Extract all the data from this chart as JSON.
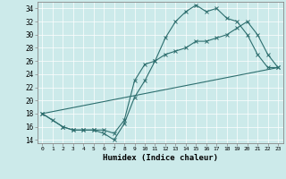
{
  "title": "",
  "xlabel": "Humidex (Indice chaleur)",
  "ylabel": "",
  "background_color": "#cceaea",
  "grid_color": "#ffffff",
  "line_color": "#2d6e6e",
  "xlim": [
    -0.5,
    23.5
  ],
  "ylim": [
    13.5,
    35.0
  ],
  "xticks": [
    0,
    1,
    2,
    3,
    4,
    5,
    6,
    7,
    8,
    9,
    10,
    11,
    12,
    13,
    14,
    15,
    16,
    17,
    18,
    19,
    20,
    21,
    22,
    23
  ],
  "yticks": [
    14,
    16,
    18,
    20,
    22,
    24,
    26,
    28,
    30,
    32,
    34
  ],
  "line1_x": [
    0,
    1,
    2,
    3,
    4,
    5,
    6,
    7,
    8,
    9,
    10,
    11,
    12,
    13,
    14,
    15,
    16,
    17,
    18,
    19,
    20,
    21,
    22,
    23
  ],
  "line1_y": [
    18,
    17,
    16,
    15.5,
    15.5,
    15.5,
    15,
    14,
    16.5,
    20.5,
    23,
    26,
    29.5,
    32,
    33.5,
    34.5,
    33.5,
    34,
    32.5,
    32,
    30,
    27,
    25,
    25
  ],
  "line2_x": [
    0,
    2,
    3,
    4,
    5,
    6,
    7,
    8,
    9,
    10,
    11,
    12,
    13,
    14,
    15,
    16,
    17,
    18,
    19,
    20,
    21,
    22,
    23
  ],
  "line2_y": [
    18,
    16,
    15.5,
    15.5,
    15.5,
    15.5,
    15,
    17,
    23,
    25.5,
    26,
    27,
    27.5,
    28,
    29,
    29,
    29.5,
    30,
    31,
    32,
    30,
    27,
    25
  ],
  "line3_x": [
    0,
    23
  ],
  "line3_y": [
    18,
    25
  ]
}
